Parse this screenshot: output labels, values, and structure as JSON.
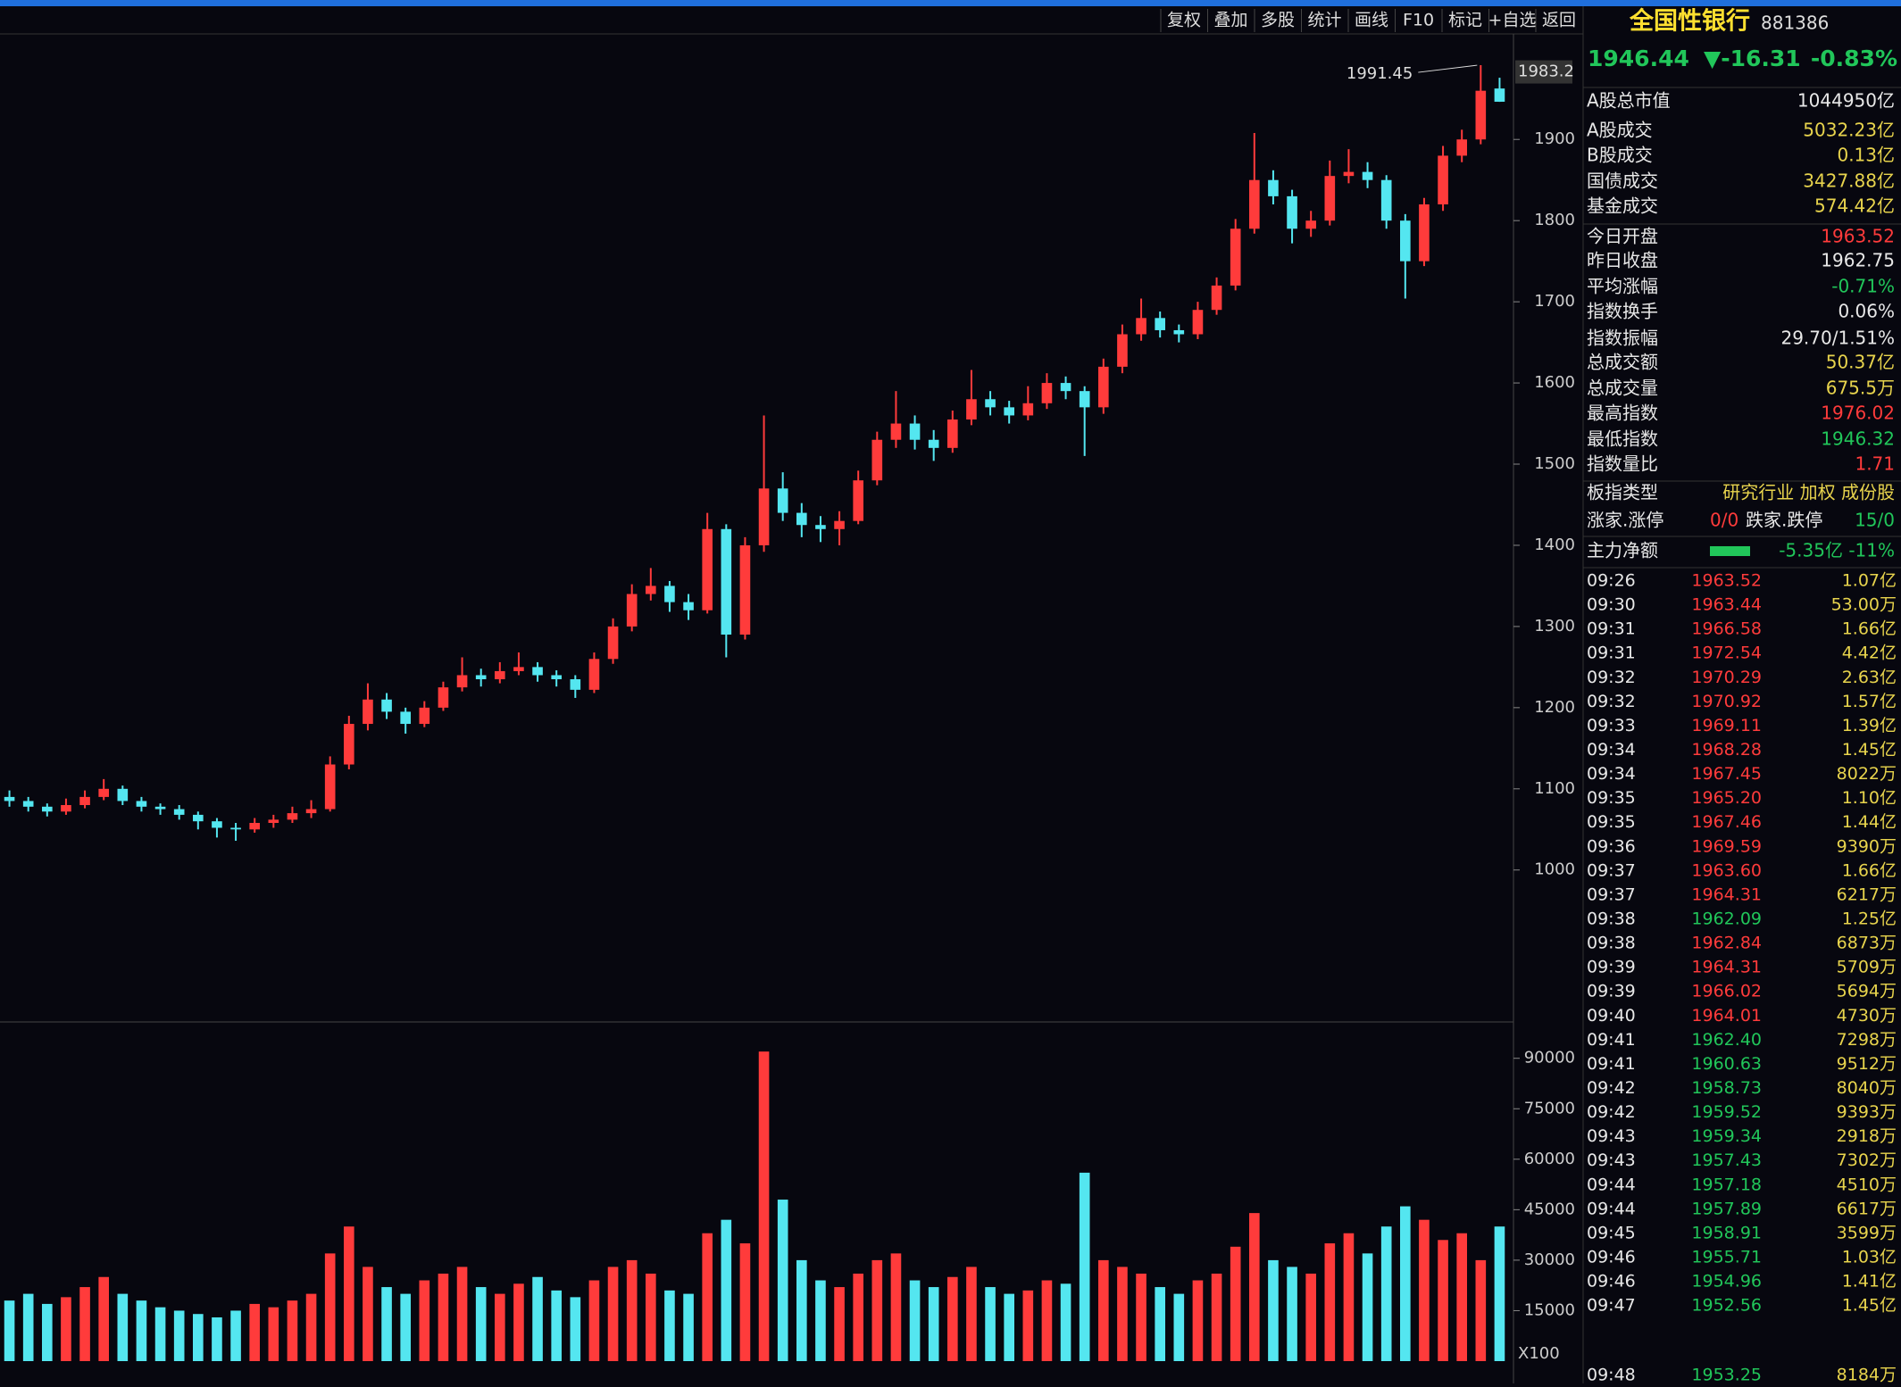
{
  "toolbar": [
    "复权",
    "叠加",
    "多股",
    "统计",
    "画线",
    "F10",
    "标记",
    "+自选",
    "返回"
  ],
  "quote": {
    "name": "全国性银行",
    "code": "881386",
    "price": "1946.44",
    "change": "▼-16.31",
    "change_pct": "-0.83%"
  },
  "stats": [
    {
      "label": "A股总市值",
      "value": "1044950亿",
      "color": "#e8e8e8"
    },
    {
      "label": "A股成交",
      "value": "5032.23亿",
      "color": "#e8d44d"
    },
    {
      "label": "B股成交",
      "value": "0.13亿",
      "color": "#e8d44d"
    },
    {
      "label": "国债成交",
      "value": "3427.88亿",
      "color": "#e8d44d"
    },
    {
      "label": "基金成交",
      "value": "574.42亿",
      "color": "#e8d44d"
    },
    {
      "label": "今日开盘",
      "value": "1963.52",
      "color": "#ff3b3b"
    },
    {
      "label": "昨日收盘",
      "value": "1962.75",
      "color": "#e8e8e8"
    },
    {
      "label": "平均涨幅",
      "value": "-0.71%",
      "color": "#21c65a"
    },
    {
      "label": "指数换手",
      "value": "0.06%",
      "color": "#e8e8e8"
    },
    {
      "label": "指数振幅",
      "value": "29.70/1.51%",
      "color": "#e8e8e8"
    },
    {
      "label": "总成交额",
      "value": "50.37亿",
      "color": "#e8d44d"
    },
    {
      "label": "总成交量",
      "value": "675.5万",
      "color": "#e8d44d"
    },
    {
      "label": "最高指数",
      "value": "1976.02",
      "color": "#ff3b3b"
    },
    {
      "label": "最低指数",
      "value": "1946.32",
      "color": "#21c65a"
    },
    {
      "label": "指数量比",
      "value": "1.71",
      "color": "#ff3b3b"
    },
    {
      "label": "板指类型",
      "value": "研究行业 加权 成份股",
      "color": "#e8d44d"
    }
  ],
  "breadth": {
    "up_label": "涨家.涨停",
    "up_value": "0/0",
    "down_label": "跌家.跌停",
    "down_value": "15/0"
  },
  "flow": {
    "label": "主力净额",
    "value": "-5.35亿 -11%"
  },
  "ticks": [
    [
      "09:26",
      "1963.52",
      "1.07亿"
    ],
    [
      "09:30",
      "1963.44",
      "53.00万"
    ],
    [
      "09:31",
      "1966.58",
      "1.66亿"
    ],
    [
      "09:31",
      "1972.54",
      "4.42亿"
    ],
    [
      "09:32",
      "1970.29",
      "2.63亿"
    ],
    [
      "09:32",
      "1970.92",
      "1.57亿"
    ],
    [
      "09:33",
      "1969.11",
      "1.39亿"
    ],
    [
      "09:34",
      "1968.28",
      "1.45亿"
    ],
    [
      "09:34",
      "1967.45",
      "8022万"
    ],
    [
      "09:35",
      "1965.20",
      "1.10亿"
    ],
    [
      "09:35",
      "1967.46",
      "1.44亿"
    ],
    [
      "09:36",
      "1969.59",
      "9390万"
    ],
    [
      "09:37",
      "1963.60",
      "1.66亿"
    ],
    [
      "09:37",
      "1964.31",
      "6217万"
    ],
    [
      "09:38",
      "1962.09",
      "1.25亿"
    ],
    [
      "09:38",
      "1962.84",
      "6873万"
    ],
    [
      "09:39",
      "1964.31",
      "5709万"
    ],
    [
      "09:39",
      "1966.02",
      "5694万"
    ],
    [
      "09:40",
      "1964.01",
      "4730万"
    ],
    [
      "09:41",
      "1962.40",
      "7298万"
    ],
    [
      "09:41",
      "1960.63",
      "9512万"
    ],
    [
      "09:42",
      "1958.73",
      "8040万"
    ],
    [
      "09:42",
      "1959.52",
      "9393万"
    ],
    [
      "09:43",
      "1959.34",
      "2918万"
    ],
    [
      "09:43",
      "1957.43",
      "7302万"
    ],
    [
      "09:44",
      "1957.18",
      "4510万"
    ],
    [
      "09:44",
      "1957.89",
      "6617万"
    ],
    [
      "09:45",
      "1958.91",
      "3599万"
    ],
    [
      "09:46",
      "1955.71",
      "1.03亿"
    ],
    [
      "09:46",
      "1954.96",
      "1.41亿"
    ],
    [
      "09:47",
      "1952.56",
      "1.45亿"
    ],
    [
      "09:48",
      "1953.25",
      "8184万"
    ]
  ],
  "chart_data": {
    "type": "candlestick",
    "up_color": "#ff3b3b",
    "down_color": "#54e6f0",
    "ylim": [
      815,
      2030
    ],
    "yticks": [
      1000,
      1100,
      1200,
      1300,
      1400,
      1500,
      1600,
      1700,
      1800,
      1900
    ],
    "candles": [
      [
        1090,
        1098,
        1078,
        1085
      ],
      [
        1085,
        1090,
        1072,
        1078
      ],
      [
        1078,
        1082,
        1066,
        1072
      ],
      [
        1072,
        1088,
        1068,
        1080
      ],
      [
        1080,
        1098,
        1076,
        1090
      ],
      [
        1090,
        1112,
        1086,
        1100
      ],
      [
        1100,
        1104,
        1080,
        1085
      ],
      [
        1085,
        1090,
        1072,
        1078
      ],
      [
        1078,
        1082,
        1068,
        1075
      ],
      [
        1075,
        1080,
        1062,
        1068
      ],
      [
        1068,
        1072,
        1050,
        1060
      ],
      [
        1060,
        1064,
        1040,
        1052
      ],
      [
        1052,
        1058,
        1036,
        1050
      ],
      [
        1050,
        1064,
        1046,
        1058
      ],
      [
        1058,
        1068,
        1052,
        1062
      ],
      [
        1062,
        1078,
        1058,
        1070
      ],
      [
        1070,
        1086,
        1064,
        1075
      ],
      [
        1075,
        1140,
        1072,
        1130
      ],
      [
        1130,
        1190,
        1124,
        1180
      ],
      [
        1180,
        1230,
        1172,
        1210
      ],
      [
        1210,
        1218,
        1186,
        1195
      ],
      [
        1195,
        1200,
        1168,
        1180
      ],
      [
        1180,
        1208,
        1176,
        1200
      ],
      [
        1200,
        1232,
        1196,
        1225
      ],
      [
        1225,
        1262,
        1220,
        1240
      ],
      [
        1240,
        1248,
        1226,
        1235
      ],
      [
        1235,
        1256,
        1230,
        1245
      ],
      [
        1245,
        1268,
        1240,
        1250
      ],
      [
        1250,
        1256,
        1232,
        1240
      ],
      [
        1240,
        1246,
        1226,
        1235
      ],
      [
        1235,
        1240,
        1212,
        1222
      ],
      [
        1222,
        1268,
        1218,
        1260
      ],
      [
        1260,
        1310,
        1254,
        1300
      ],
      [
        1300,
        1352,
        1294,
        1340
      ],
      [
        1340,
        1372,
        1332,
        1350
      ],
      [
        1350,
        1356,
        1318,
        1330
      ],
      [
        1330,
        1340,
        1308,
        1320
      ],
      [
        1320,
        1440,
        1316,
        1420
      ],
      [
        1420,
        1426,
        1262,
        1290
      ],
      [
        1290,
        1410,
        1284,
        1400
      ],
      [
        1400,
        1560,
        1392,
        1470
      ],
      [
        1470,
        1490,
        1430,
        1440
      ],
      [
        1440,
        1452,
        1410,
        1425
      ],
      [
        1425,
        1436,
        1404,
        1420
      ],
      [
        1420,
        1442,
        1400,
        1430
      ],
      [
        1430,
        1492,
        1426,
        1480
      ],
      [
        1480,
        1540,
        1474,
        1530
      ],
      [
        1530,
        1590,
        1520,
        1550
      ],
      [
        1550,
        1560,
        1518,
        1530
      ],
      [
        1530,
        1542,
        1504,
        1520
      ],
      [
        1520,
        1566,
        1514,
        1555
      ],
      [
        1555,
        1616,
        1548,
        1580
      ],
      [
        1580,
        1590,
        1560,
        1570
      ],
      [
        1570,
        1578,
        1550,
        1560
      ],
      [
        1560,
        1596,
        1554,
        1575
      ],
      [
        1575,
        1612,
        1568,
        1600
      ],
      [
        1600,
        1608,
        1580,
        1590
      ],
      [
        1590,
        1596,
        1510,
        1570
      ],
      [
        1570,
        1630,
        1562,
        1620
      ],
      [
        1620,
        1672,
        1612,
        1660
      ],
      [
        1660,
        1704,
        1652,
        1680
      ],
      [
        1680,
        1688,
        1656,
        1665
      ],
      [
        1665,
        1672,
        1650,
        1660
      ],
      [
        1660,
        1700,
        1654,
        1690
      ],
      [
        1690,
        1730,
        1684,
        1720
      ],
      [
        1720,
        1802,
        1714,
        1790
      ],
      [
        1790,
        1908,
        1784,
        1850
      ],
      [
        1850,
        1862,
        1820,
        1830
      ],
      [
        1830,
        1838,
        1772,
        1790
      ],
      [
        1790,
        1812,
        1780,
        1800
      ],
      [
        1800,
        1874,
        1794,
        1855
      ],
      [
        1855,
        1888,
        1846,
        1860
      ],
      [
        1860,
        1872,
        1840,
        1850
      ],
      [
        1850,
        1856,
        1790,
        1800
      ],
      [
        1800,
        1808,
        1704,
        1750
      ],
      [
        1750,
        1828,
        1744,
        1820
      ],
      [
        1820,
        1892,
        1812,
        1880
      ],
      [
        1880,
        1912,
        1872,
        1900
      ],
      [
        1900,
        1991.45,
        1894,
        1960
      ],
      [
        1962.75,
        1976.02,
        1946.32,
        1946.44
      ]
    ],
    "high_label": "1991.45",
    "cursor_label": "1983.2",
    "cursor_value": 1983.2,
    "volumes": [
      18000,
      20000,
      17000,
      19000,
      22000,
      25000,
      20000,
      18000,
      16000,
      15000,
      14000,
      13000,
      15000,
      17000,
      16000,
      18000,
      20000,
      32000,
      40000,
      28000,
      22000,
      20000,
      24000,
      26000,
      28000,
      22000,
      20000,
      23000,
      25000,
      21000,
      19000,
      24000,
      28000,
      30000,
      26000,
      21000,
      20000,
      38000,
      42000,
      35000,
      92000,
      48000,
      30000,
      24000,
      22000,
      26000,
      30000,
      32000,
      24000,
      22000,
      25000,
      28000,
      22000,
      20000,
      21000,
      24000,
      23000,
      56000,
      30000,
      28000,
      26000,
      22000,
      20000,
      24000,
      26000,
      34000,
      44000,
      30000,
      28000,
      26000,
      35000,
      38000,
      32000,
      40000,
      46000,
      42000,
      36000,
      38000,
      30000,
      40000
    ],
    "vol_ylim": [
      0,
      100000
    ],
    "vol_yticks": [
      15000,
      30000,
      45000,
      60000,
      75000,
      90000
    ],
    "vol_unit": "X100"
  }
}
